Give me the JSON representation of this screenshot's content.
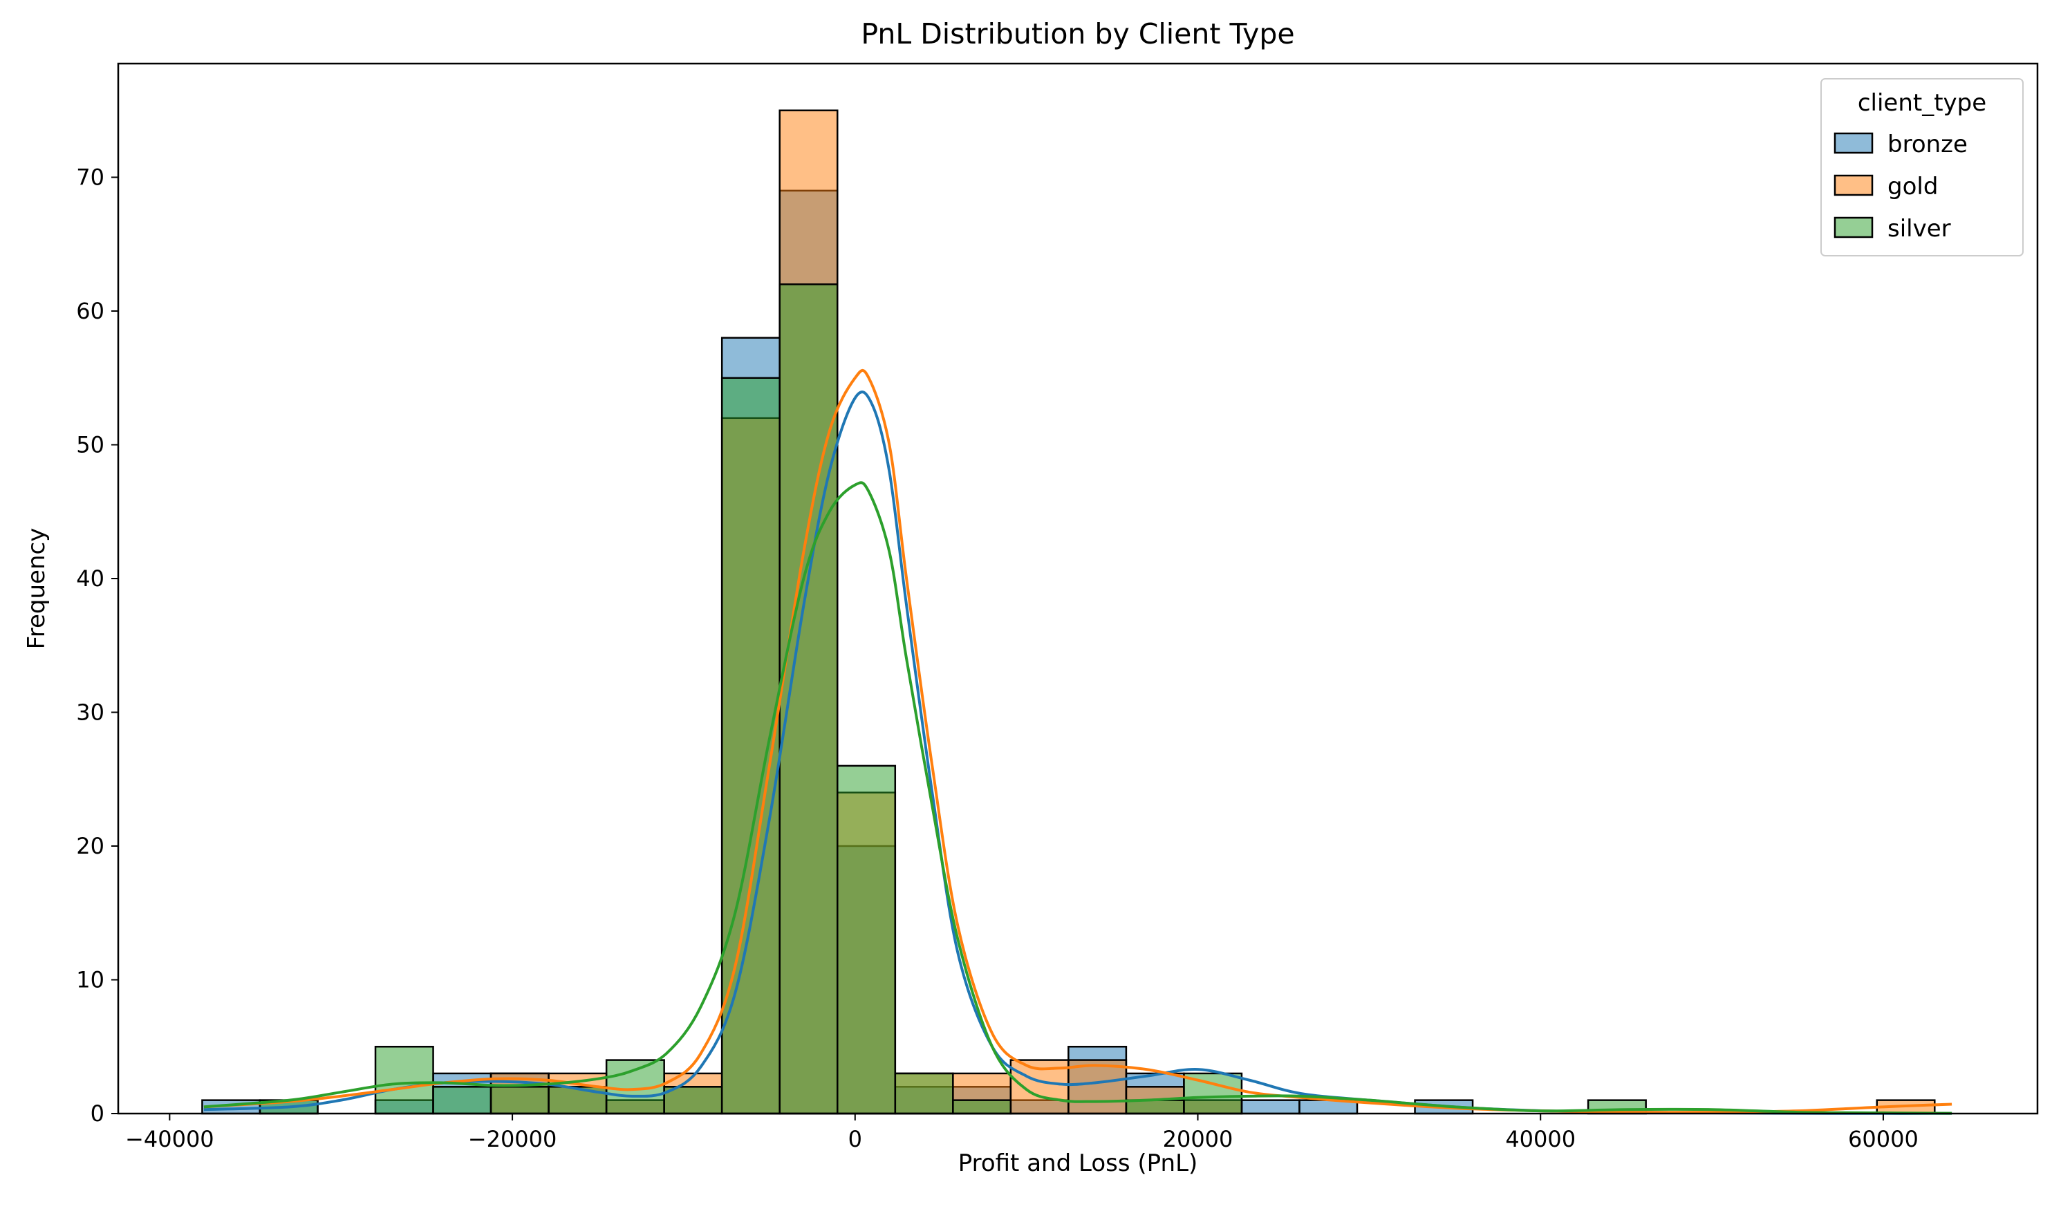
{
  "chart_data": {
    "type": "histogram",
    "title": "PnL Distribution by Client Type",
    "xlabel": "Profit and Loss (PnL)",
    "ylabel": "Frequency",
    "xlim": [
      -43000,
      69000
    ],
    "ylim": [
      0,
      78.5
    ],
    "x_ticks": [
      -40000,
      -20000,
      0,
      20000,
      40000,
      60000
    ],
    "x_tick_labels": [
      "−40000",
      "−20000",
      "0",
      "20000",
      "40000",
      "60000"
    ],
    "y_ticks": [
      0,
      10,
      20,
      30,
      40,
      50,
      60,
      70
    ],
    "y_tick_labels": [
      "0",
      "10",
      "20",
      "30",
      "40",
      "50",
      "60",
      "70"
    ],
    "bin_start": -38100,
    "bin_width": 3370,
    "grid": false,
    "legend": {
      "title": "client_type",
      "placement": "top-right"
    },
    "series": [
      {
        "name": "bronze",
        "color": "#1f77b4",
        "counts": [
          1,
          1,
          0,
          1,
          3,
          3,
          2,
          1,
          2,
          58,
          69,
          20,
          2,
          2,
          1,
          5,
          3,
          1,
          1,
          1,
          0,
          1,
          0,
          0,
          0,
          0,
          0,
          0,
          0,
          0
        ],
        "kde_x": [
          -38000,
          -33000,
          -30000,
          -27000,
          -24000,
          -21000,
          -18000,
          -15000,
          -13000,
          -11000,
          -9000,
          -7000,
          -5000,
          -3000,
          -1500,
          0,
          1000,
          2000,
          3000,
          4500,
          6000,
          8000,
          10000,
          12000,
          14000,
          17000,
          20000,
          23000,
          26000,
          30000,
          35000,
          38000,
          42000,
          46000,
          50000,
          55000,
          60000,
          64000
        ],
        "kde_y": [
          0.3,
          0.5,
          1.0,
          1.8,
          2.3,
          2.4,
          2.2,
          1.6,
          1.3,
          1.6,
          3.5,
          9,
          22,
          38,
          48,
          53.5,
          53,
          48,
          38,
          24,
          12,
          5,
          2.8,
          2.2,
          2.3,
          2.8,
          3.3,
          2.5,
          1.5,
          1.0,
          0.5,
          0.3,
          0.15,
          0.1,
          0.05,
          0.02,
          0.01,
          0.01
        ]
      },
      {
        "name": "gold",
        "color": "#ff7f0e",
        "counts": [
          0,
          0,
          0,
          0,
          0,
          3,
          3,
          1,
          3,
          52,
          75,
          24,
          3,
          3,
          4,
          4,
          2,
          1,
          0,
          0,
          0,
          0,
          0,
          0,
          0,
          0,
          0,
          0,
          0,
          1
        ],
        "kde_x": [
          -38000,
          -33000,
          -30000,
          -27000,
          -24000,
          -21000,
          -18000,
          -15000,
          -13000,
          -11000,
          -9000,
          -7000,
          -5000,
          -3000,
          -1500,
          0,
          800,
          2000,
          3000,
          4500,
          6000,
          8000,
          10000,
          12000,
          14000,
          17000,
          20000,
          23000,
          26000,
          30000,
          35000,
          40000,
          45000,
          50000,
          55000,
          60000,
          64000
        ],
        "kde_y": [
          0.5,
          0.9,
          1.3,
          1.8,
          2.3,
          2.6,
          2.5,
          2.0,
          1.8,
          2.3,
          4.5,
          11,
          26,
          42,
          51,
          55,
          55,
          50,
          40,
          26,
          14,
          6,
          3.6,
          3.4,
          3.6,
          3.3,
          2.5,
          1.6,
          1.2,
          0.8,
          0.4,
          0.2,
          0.1,
          0.1,
          0.2,
          0.5,
          0.7
        ]
      },
      {
        "name": "silver",
        "color": "#2ca02c",
        "counts": [
          0,
          1,
          0,
          5,
          2,
          2,
          2,
          4,
          2,
          55,
          62,
          26,
          3,
          1,
          0,
          0,
          1,
          3,
          0,
          0,
          0,
          0,
          0,
          0,
          1,
          0,
          0,
          0,
          0,
          0
        ],
        "kde_x": [
          -38000,
          -33000,
          -30000,
          -27000,
          -24000,
          -21000,
          -18000,
          -15000,
          -13000,
          -11000,
          -9000,
          -7000,
          -5000,
          -3000,
          -1500,
          0,
          800,
          2000,
          3000,
          4500,
          6000,
          8000,
          10000,
          12000,
          14000,
          17000,
          20000,
          23000,
          26000,
          30000,
          35000,
          40000,
          45000,
          50000,
          55000,
          60000,
          64000
        ],
        "kde_y": [
          0.5,
          1.0,
          1.6,
          2.2,
          2.3,
          2.1,
          2.2,
          2.6,
          3.2,
          4.5,
          8,
          15,
          28,
          40,
          45,
          47,
          46.5,
          42,
          34,
          23,
          13,
          5,
          1.8,
          1.0,
          0.9,
          1.0,
          1.2,
          1.3,
          1.3,
          1.0,
          0.5,
          0.2,
          0.3,
          0.3,
          0.1,
          0.05,
          0.02
        ]
      }
    ]
  }
}
